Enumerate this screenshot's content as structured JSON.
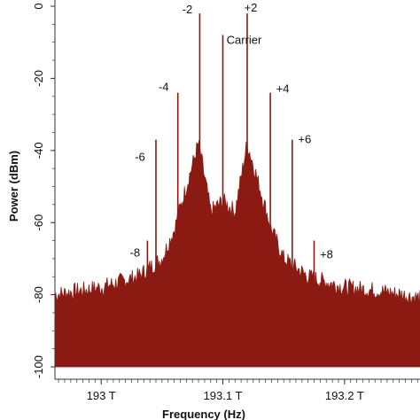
{
  "chart_data": {
    "type": "line",
    "title": "",
    "xlabel": "Frequency (Hz)",
    "ylabel": "Power (dBm)",
    "xlim": [
      192.962,
      193.262
    ],
    "ylim": [
      -100,
      0
    ],
    "x_ticks": [
      {
        "value": 193.0,
        "label": "193 T"
      },
      {
        "value": 193.1,
        "label": "193.1 T"
      },
      {
        "value": 193.2,
        "label": "193.2 T"
      }
    ],
    "y_ticks": [
      {
        "value": 0,
        "label": "0"
      },
      {
        "value": -20,
        "label": "-20"
      },
      {
        "value": -40,
        "label": "-40"
      },
      {
        "value": -60,
        "label": "-60"
      },
      {
        "value": -80,
        "label": "-80"
      },
      {
        "value": -100,
        "label": "-100"
      }
    ],
    "grid": "off",
    "noise_floor_dbm": -100,
    "series_color": "#8b1a12",
    "envelope": {
      "x": [
        192.962,
        193.0,
        193.03,
        193.05,
        193.06,
        193.07,
        193.08,
        193.09,
        193.1,
        193.11,
        193.12,
        193.13,
        193.14,
        193.15,
        193.17,
        193.2,
        193.23,
        193.262
      ],
      "y": [
        -80,
        -78,
        -75,
        -70,
        -62,
        -50,
        -38,
        -57,
        -54,
        -57,
        -38,
        -50,
        -62,
        -70,
        -75,
        -78,
        -79,
        -81
      ]
    },
    "sidebands": [
      {
        "order": -8,
        "label": "-8",
        "x": 193.038,
        "y": -65
      },
      {
        "order": -6,
        "label": "-6",
        "x": 193.045,
        "y": -37
      },
      {
        "order": -4,
        "label": "-4",
        "x": 193.063,
        "y": -24
      },
      {
        "order": -2,
        "label": "-2",
        "x": 193.081,
        "y": -2
      },
      {
        "order": 0,
        "label": "Carrier",
        "x": 193.1,
        "y": -8
      },
      {
        "order": 2,
        "label": "+2",
        "x": 193.12,
        "y": -2
      },
      {
        "order": 4,
        "label": "+4",
        "x": 193.139,
        "y": -24
      },
      {
        "order": 6,
        "label": "+6",
        "x": 193.157,
        "y": -37
      },
      {
        "order": 8,
        "label": "+8",
        "x": 193.175,
        "y": -65
      }
    ]
  }
}
